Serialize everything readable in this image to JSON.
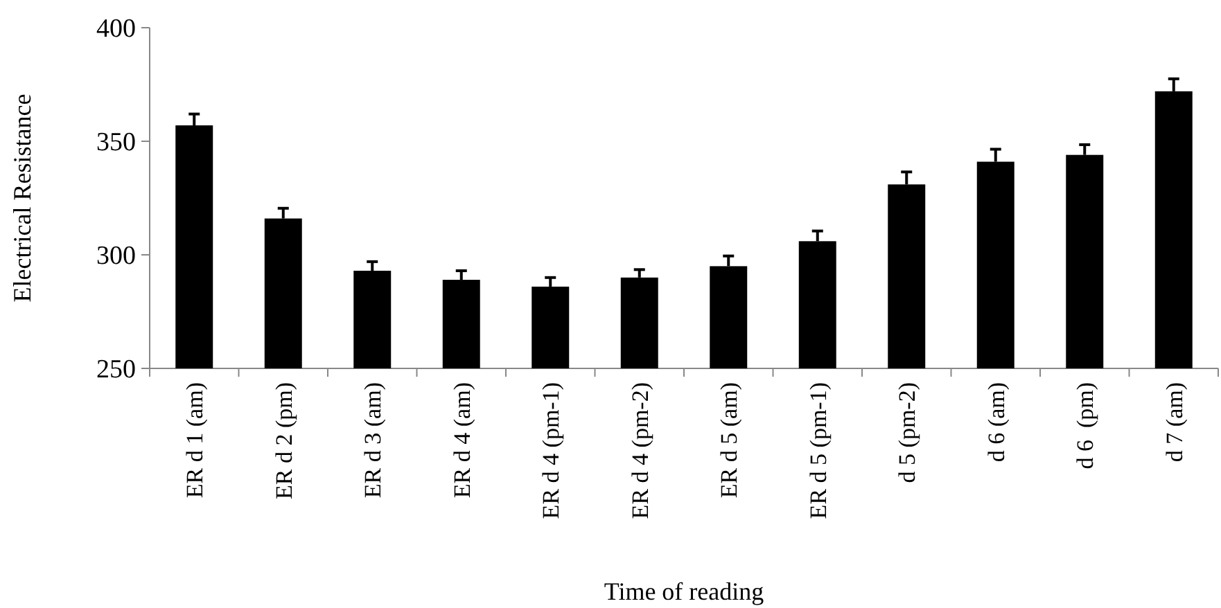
{
  "chart_data": {
    "type": "bar",
    "xlabel": "Time of reading",
    "ylabel": "Electrical Resistance",
    "categories": [
      "ER d 1 (am)",
      "ER d 2 (pm)",
      "ER d 3 (am)",
      "ER d 4 (am)",
      "ER d 4 (pm-1)",
      "ER d 4 (pm-2)",
      "ER d 5 (am)",
      "ER d 5 (pm-1)",
      "d 5 (pm-2)",
      "d 6 (am)",
      "d 6  (pm)",
      "d 7 (am)"
    ],
    "values": [
      357,
      316,
      293,
      289,
      286,
      290,
      295,
      306,
      331,
      341,
      344,
      372
    ],
    "errors": [
      5,
      4.5,
      4,
      4,
      4,
      3.5,
      4.5,
      4.5,
      5.5,
      5.5,
      4.5,
      5.5
    ],
    "color": "#000000",
    "ylim": [
      250,
      400
    ],
    "yticks": [
      250,
      300,
      350,
      400
    ],
    "grid": false
  }
}
